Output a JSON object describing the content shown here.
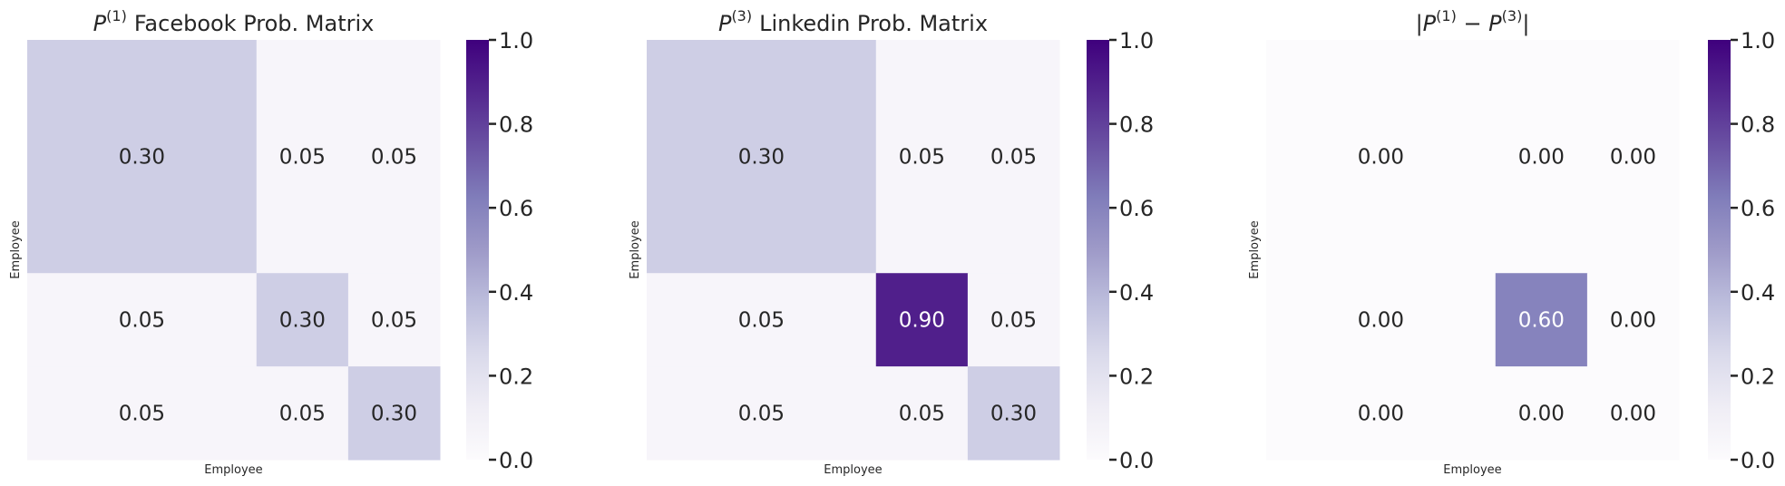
{
  "chart_data": [
    {
      "type": "heatmap",
      "title": {
        "symbol": "P",
        "superscript": "(1)",
        "rest": "Facebook Prob. Matrix"
      },
      "xlabel": "Employee",
      "ylabel": "Employee",
      "block_sizes": [
        50,
        20,
        20
      ],
      "values": [
        [
          0.3,
          0.05,
          0.05
        ],
        [
          0.05,
          0.3,
          0.05
        ],
        [
          0.05,
          0.05,
          0.3
        ]
      ],
      "labels": [
        [
          "0.30",
          "0.05",
          "0.05"
        ],
        [
          "0.05",
          "0.30",
          "0.05"
        ],
        [
          "0.05",
          "0.05",
          "0.30"
        ]
      ],
      "colorbar": {
        "min": 0.0,
        "max": 1.0,
        "ticks": [
          "0.0",
          "0.2",
          "0.4",
          "0.6",
          "0.8",
          "1.0"
        ],
        "colormap": "Purples"
      },
      "grid": false
    },
    {
      "type": "heatmap",
      "title": {
        "symbol": "P",
        "superscript": "(3)",
        "rest": "Linkedin Prob. Matrix"
      },
      "xlabel": "Employee",
      "ylabel": "Employee",
      "block_sizes": [
        50,
        20,
        20
      ],
      "values": [
        [
          0.3,
          0.05,
          0.05
        ],
        [
          0.05,
          0.9,
          0.05
        ],
        [
          0.05,
          0.05,
          0.3
        ]
      ],
      "labels": [
        [
          "0.30",
          "0.05",
          "0.05"
        ],
        [
          "0.05",
          "0.90",
          "0.05"
        ],
        [
          "0.05",
          "0.05",
          "0.30"
        ]
      ],
      "colorbar": {
        "min": 0.0,
        "max": 1.0,
        "ticks": [
          "0.0",
          "0.2",
          "0.4",
          "0.6",
          "0.8",
          "1.0"
        ],
        "colormap": "Purples"
      },
      "grid": false
    },
    {
      "type": "heatmap",
      "title": {
        "text": "|P(1) − P(3)|",
        "parts": [
          "|P",
          "(1)",
          " − P",
          "(3)",
          "|"
        ]
      },
      "xlabel": "Employee",
      "ylabel": "Employee",
      "block_sizes": [
        50,
        20,
        20
      ],
      "values": [
        [
          0.0,
          0.0,
          0.0
        ],
        [
          0.0,
          0.6,
          0.0
        ],
        [
          0.0,
          0.0,
          0.0
        ]
      ],
      "labels": [
        [
          "0.00",
          "0.00",
          "0.00"
        ],
        [
          "0.00",
          "0.60",
          "0.00"
        ],
        [
          "0.00",
          "0.00",
          "0.00"
        ]
      ],
      "colorbar": {
        "min": 0.0,
        "max": 1.0,
        "ticks": [
          "0.0",
          "0.2",
          "0.4",
          "0.6",
          "0.8",
          "1.0"
        ],
        "colormap": "Purples"
      },
      "grid": false
    }
  ]
}
